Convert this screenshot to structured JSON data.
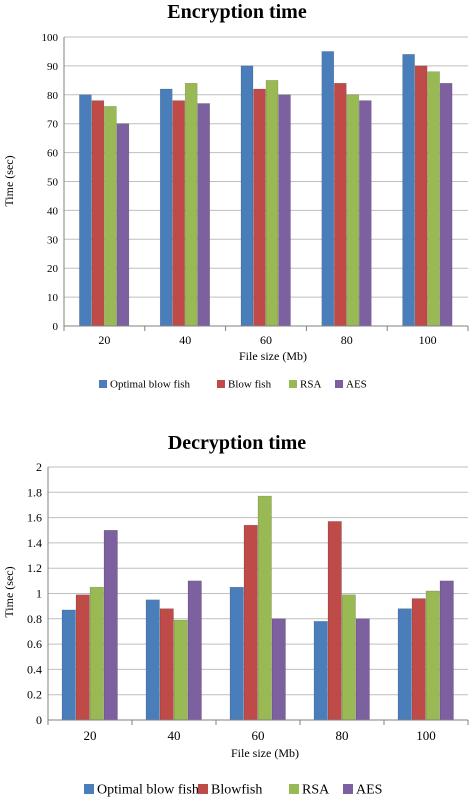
{
  "chart_data": [
    {
      "type": "bar",
      "title": "Encryption time",
      "xlabel": "File size (Mb)",
      "ylabel": "Time (sec)",
      "categories": [
        "20",
        "40",
        "60",
        "80",
        "100"
      ],
      "ylim": [
        0,
        100
      ],
      "yticks": [
        "0",
        "10",
        "20",
        "30",
        "40",
        "50",
        "60",
        "70",
        "80",
        "90",
        "100"
      ],
      "grid": true,
      "legend_position": "bottom",
      "series": [
        {
          "name": "Optimal blow fish",
          "color": "#4a7ebb",
          "values": [
            80,
            82,
            90,
            95,
            94
          ]
        },
        {
          "name": "Blow fish",
          "color": "#be4b48",
          "values": [
            78,
            78,
            82,
            84,
            90
          ]
        },
        {
          "name": "RSA",
          "color": "#98b954",
          "values": [
            76,
            84,
            85,
            80,
            88
          ]
        },
        {
          "name": "AES",
          "color": "#7d60a0",
          "values": [
            70,
            77,
            80,
            78,
            84
          ]
        }
      ]
    },
    {
      "type": "bar",
      "title": "Decryption time",
      "xlabel": "File size (Mb)",
      "ylabel": "Time (sec)",
      "categories": [
        "20",
        "40",
        "60",
        "80",
        "100"
      ],
      "ylim": [
        0,
        2
      ],
      "yticks": [
        "0",
        "0.2",
        "0.4",
        "0.6",
        "0.8",
        "1",
        "1.2",
        "1.4",
        "1.6",
        "1.8",
        "2"
      ],
      "grid": true,
      "legend_position": "bottom",
      "series": [
        {
          "name": "Optimal blow fish",
          "color": "#4a7ebb",
          "values": [
            0.87,
            0.95,
            1.05,
            0.78,
            0.88
          ]
        },
        {
          "name": "Blowfish",
          "color": "#be4b48",
          "values": [
            0.99,
            0.88,
            1.54,
            1.57,
            0.96
          ]
        },
        {
          "name": "RSA",
          "color": "#98b954",
          "values": [
            1.05,
            0.79,
            1.77,
            0.99,
            1.02
          ]
        },
        {
          "name": "AES",
          "color": "#7d60a0",
          "values": [
            1.5,
            1.1,
            0.8,
            0.8,
            1.1
          ]
        }
      ]
    }
  ]
}
